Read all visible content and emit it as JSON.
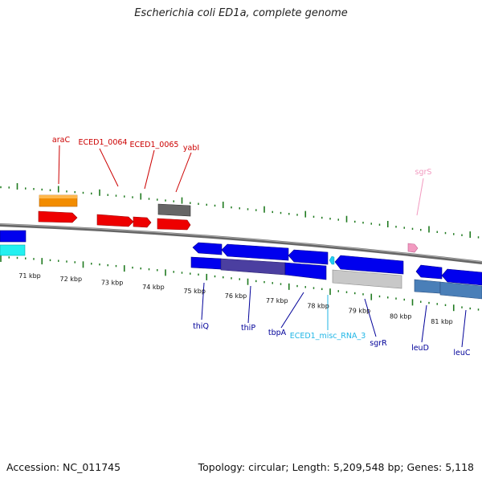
{
  "title": "Escherichia coli ED1a, complete genome",
  "footer": {
    "accession": "Accession: NC_011745",
    "summary": "Topology: circular; Length: 5,209,548 bp; Genes: 5,118"
  },
  "colors": {
    "backbone": "#777777",
    "ticks": "#1f7a1f",
    "forward_label": "#cc0000",
    "reverse_label": "#000099",
    "rna_label": "#1fb6e6",
    "pseudo_label": "#f29ac0"
  },
  "tick_labels": [
    "71 kbp",
    "72 kbp",
    "73 kbp",
    "74 kbp",
    "75 kbp",
    "76 kbp",
    "77 kbp",
    "78 kbp",
    "79 kbp",
    "80 kbp",
    "81 kbp"
  ],
  "upper_labels": [
    {
      "id": "araC",
      "text": "araC"
    },
    {
      "id": "eced1_0064",
      "text": "ECED1_0064"
    },
    {
      "id": "eced1_0065",
      "text": "ECED1_0065"
    },
    {
      "id": "yabl",
      "text": "yabI"
    },
    {
      "id": "sgrs",
      "text": "sgrS"
    }
  ],
  "lower_labels": [
    {
      "id": "thiq",
      "text": "thiQ"
    },
    {
      "id": "thip",
      "text": "thiP"
    },
    {
      "id": "tbpa",
      "text": "tbpA"
    },
    {
      "id": "misc_rna_3",
      "text": "ECED1_misc_RNA_3"
    },
    {
      "id": "sgrr",
      "text": "sgrR"
    },
    {
      "id": "leud",
      "text": "leuD"
    },
    {
      "id": "leuc",
      "text": "leuC"
    }
  ]
}
